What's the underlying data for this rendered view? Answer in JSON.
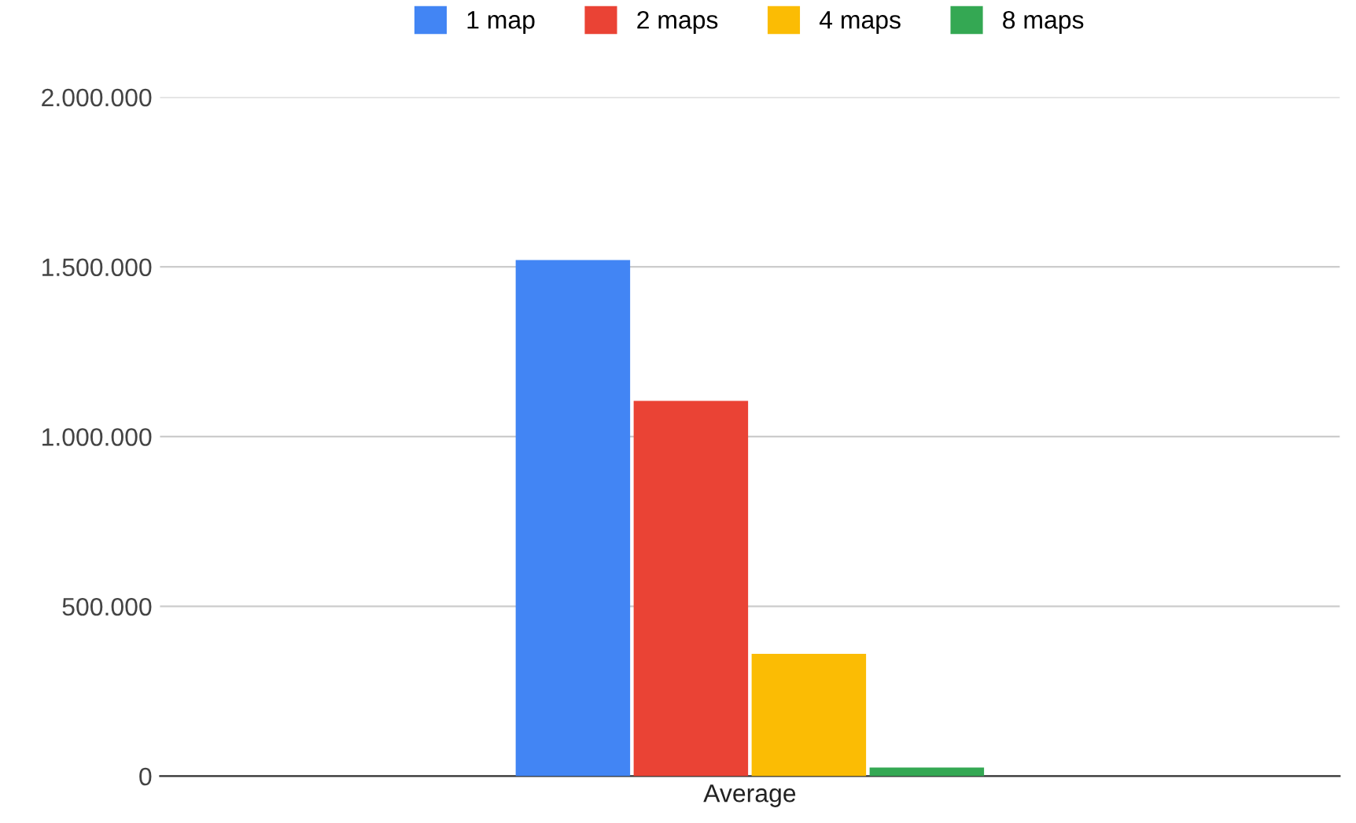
{
  "chart_data": {
    "type": "bar",
    "categories": [
      "Average"
    ],
    "series": [
      {
        "name": "1 map",
        "color": "#4285f4",
        "values": [
          1520000
        ]
      },
      {
        "name": "2 maps",
        "color": "#ea4335",
        "values": [
          1105000
        ]
      },
      {
        "name": "4 maps",
        "color": "#fbbc04",
        "values": [
          360000
        ]
      },
      {
        "name": "8 maps",
        "color": "#34a853",
        "values": [
          25000
        ]
      }
    ],
    "ylim": [
      0,
      2000000
    ],
    "yticks": [
      {
        "value": 0,
        "label": "0"
      },
      {
        "value": 500000,
        "label": "500.000"
      },
      {
        "value": 1000000,
        "label": "1.000.000"
      },
      {
        "value": 1500000,
        "label": "1.500.000"
      },
      {
        "value": 2000000,
        "label": "2.000.000"
      }
    ],
    "grid": "y",
    "legend": "top"
  }
}
